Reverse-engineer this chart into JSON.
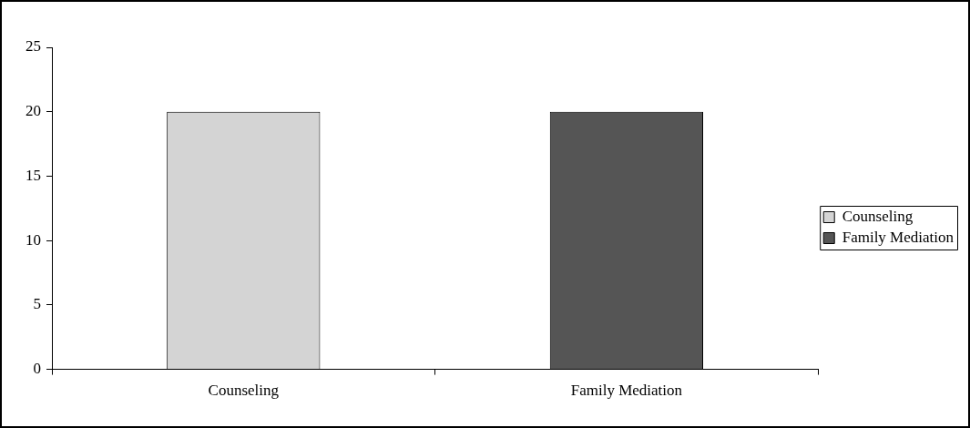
{
  "chart_data": {
    "type": "bar",
    "categories": [
      "Counseling",
      "Family Mediation"
    ],
    "series": [
      {
        "name": "Counseling",
        "color": "#d4d4d4",
        "values": [
          20,
          null
        ]
      },
      {
        "name": "Family Mediation",
        "color": "#555555",
        "values": [
          null,
          20
        ]
      }
    ],
    "ylim": [
      0,
      25
    ],
    "yticks": [
      0,
      5,
      10,
      15,
      20,
      25
    ],
    "grid": false,
    "legend": "right"
  }
}
